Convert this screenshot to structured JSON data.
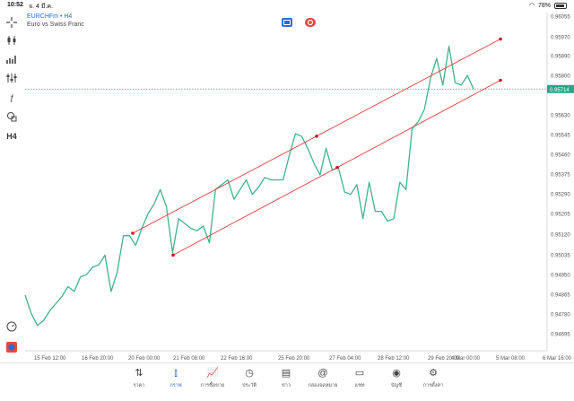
{
  "status": {
    "time": "10:52",
    "date": "จ. 4 มี.ค.",
    "battery": "78%"
  },
  "header": {
    "symbol_line": "EURCHFm • H4",
    "description": "Euro vs Swiss Franc"
  },
  "toolbar": {
    "crosshair_icon": "crosshair-icon",
    "chart_type_icon": "candles-icon",
    "indicators_icon": "indicators-icon",
    "settings_icon": "sliders-icon",
    "function_label": "ƒ",
    "objects_icon": "objects-icon",
    "timeframe_label": "H4"
  },
  "price_axis": {
    "ticks": [
      "0.96055",
      "0.95970",
      "0.95890",
      "0.95800",
      "0.95630",
      "0.95545",
      "0.95460",
      "0.95375",
      "0.95290",
      "0.95205",
      "0.95120",
      "0.95035",
      "0.94950",
      "0.94865",
      "0.94780",
      "0.94695"
    ],
    "current_price": "0.95714"
  },
  "time_axis": {
    "labels": [
      "15 Feb 12:00",
      "16 Feb 20:00",
      "20 Feb 00:00",
      "21 Feb 08:00",
      "22 Feb 16:00",
      "25 Feb 20:00",
      "27 Feb 04:00",
      "28 Feb 12:00",
      "29 Feb 20:00",
      "4 Mar 00:00",
      "5 Mar 08:00",
      "6 Mar 16:00"
    ]
  },
  "colors": {
    "line": "#3cb48c",
    "channel": "#e03c3c",
    "price_tag": "#26a68a",
    "accent": "#2a6bd8"
  },
  "chart_data": {
    "type": "line",
    "series": [
      {
        "values": [
          0.94865,
          0.9479,
          0.9474,
          0.9476,
          0.948,
          0.9483,
          0.9486,
          0.949,
          0.9488,
          0.9494,
          0.9495,
          0.9498,
          0.9499,
          0.9503,
          0.9488,
          0.9496,
          0.9511,
          0.9511,
          0.9507,
          0.9514,
          0.952,
          0.9524,
          0.953,
          0.9523,
          0.9504,
          0.9518,
          0.9516,
          0.9514,
          0.9513,
          0.9515,
          0.9508,
          0.953,
          0.9532,
          0.9534,
          0.9526,
          0.953,
          0.9534,
          0.9528,
          0.9531,
          0.9535,
          0.9534,
          0.9534,
          0.9534,
          0.9544,
          0.9553,
          0.9552,
          0.9547,
          0.9541,
          0.9536,
          0.9547,
          0.9538,
          0.9539,
          0.9529,
          0.9528,
          0.9532,
          0.9518,
          0.9533,
          0.9521,
          0.9521,
          0.9517,
          0.9518,
          0.9533,
          0.953,
          0.9555,
          0.9558,
          0.9563,
          0.9576,
          0.9584,
          0.9573,
          0.9589,
          0.9574,
          0.9573,
          0.9577,
          0.95714
        ]
      }
    ],
    "channel_upper": {
      "from": {
        "x": "20 Feb 00:00",
        "y": 0.9512
      },
      "to": {
        "x": "5 Mar 08:00",
        "y": 0.9592
      }
    },
    "channel_lower": {
      "from": {
        "x": "21 Feb 08:00",
        "y": 0.9503
      },
      "to": {
        "x": "5 Mar 08:00",
        "y": 0.9575
      }
    },
    "ylim": [
      0.9465,
      0.9608
    ],
    "grid": false
  },
  "tabs": [
    {
      "icon": "quotes-icon",
      "label": "ราคา"
    },
    {
      "icon": "chart-icon",
      "label": "กราฟ"
    },
    {
      "icon": "trade-icon",
      "label": "การซื้อขาย"
    },
    {
      "icon": "history-icon",
      "label": "ประวัติ"
    },
    {
      "icon": "news-icon",
      "label": "ข่าว"
    },
    {
      "icon": "mailbox-icon",
      "label": "กล่องจดหมาย"
    },
    {
      "icon": "chat-icon",
      "label": "แชท"
    },
    {
      "icon": "account-icon",
      "label": "บัญชี"
    },
    {
      "icon": "settings-icon",
      "label": "การตั้งค่า"
    }
  ]
}
